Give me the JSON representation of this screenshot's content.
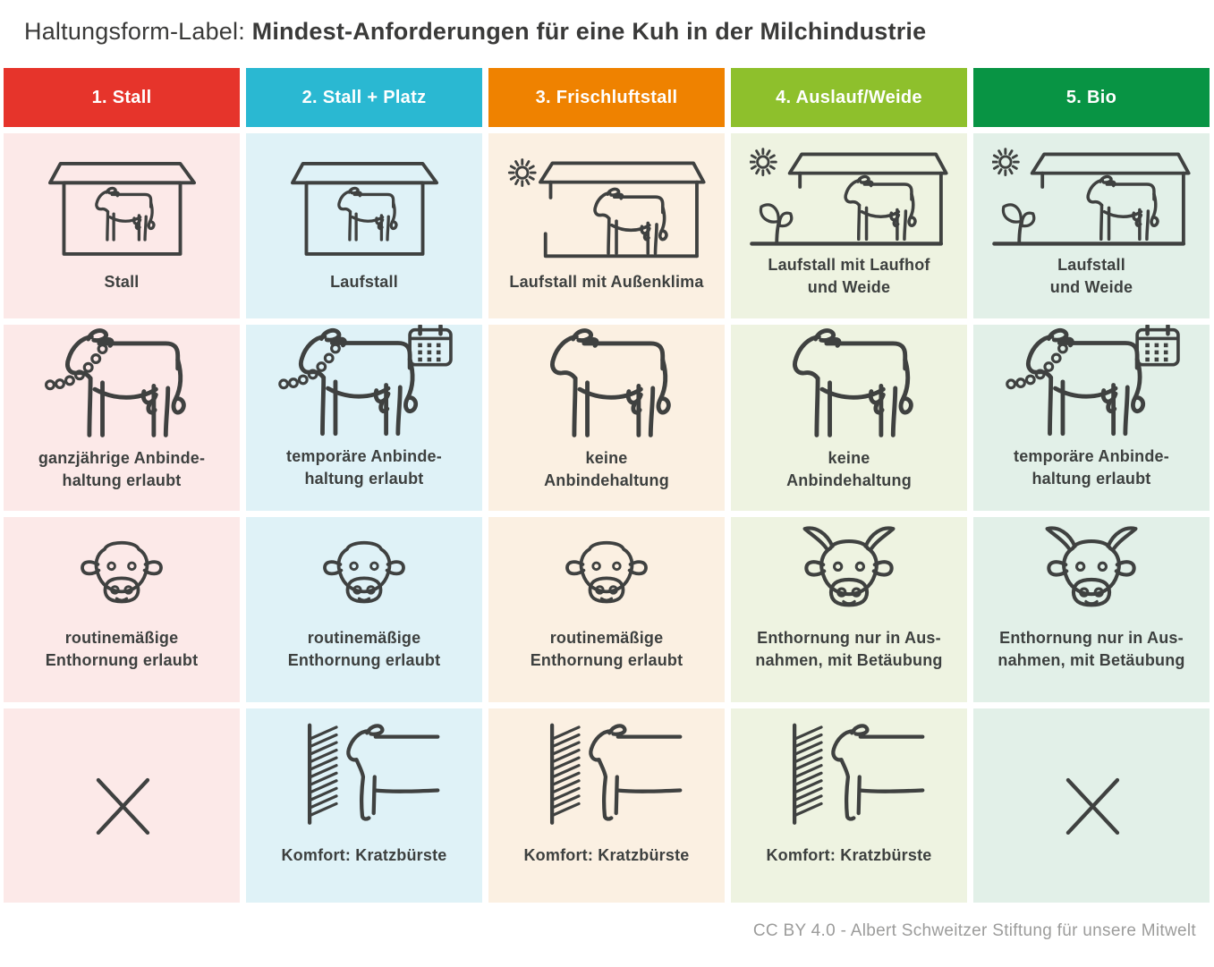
{
  "page_title": {
    "prefix": "Haltungsform-Label: ",
    "bold_rest": "Mindest-Anforderungen für eine Kuh in der Milchindustrie"
  },
  "credit": "CC BY 4.0 -  Albert Schweitzer Stiftung für unsere Mitwelt",
  "colors": {
    "line_art": "#3f4140",
    "caption_text": "#3d403f",
    "title_text": "#3a3a39",
    "credit_text": "#9c9c9b",
    "background": "#ffffff"
  },
  "columns": [
    {
      "id": "stall",
      "header": "1. Stall",
      "header_color": "#e6342b",
      "cell_color": "#fce9e8",
      "rows": [
        {
          "icon": "barn-closed-icon",
          "label": "Stall"
        },
        {
          "icon": "cow-chain-icon",
          "label": "ganzjährige Anbinde-\nhaltung erlaubt"
        },
        {
          "icon": "cow-head-icon",
          "label": "routinemäßige\nEnthornung erlaubt"
        },
        {
          "icon": "cross-icon",
          "label": ""
        }
      ]
    },
    {
      "id": "stall-platz",
      "header": "2. Stall + Platz",
      "header_color": "#2ab8d2",
      "cell_color": "#dff2f7",
      "rows": [
        {
          "icon": "barn-closed-icon",
          "label": "Laufstall"
        },
        {
          "icon": "cow-chain-calendar-icon",
          "label": "temporäre Anbinde-\nhaltung erlaubt"
        },
        {
          "icon": "cow-head-icon",
          "label": "routinemäßige\nEnthornung erlaubt"
        },
        {
          "icon": "brush-cow-icon",
          "label": "Komfort: Kratzbürste"
        }
      ]
    },
    {
      "id": "frischluftstall",
      "header": "3. Frischluftstall",
      "header_color": "#ef8200",
      "cell_color": "#fbf0e2",
      "rows": [
        {
          "icon": "barn-open-sun-icon",
          "label": "Laufstall mit Außenklima"
        },
        {
          "icon": "cow-icon",
          "label": "keine\nAnbindehaltung"
        },
        {
          "icon": "cow-head-icon",
          "label": "routinemäßige\nEnthornung erlaubt"
        },
        {
          "icon": "brush-cow-icon",
          "label": "Komfort: Kratzbürste"
        }
      ]
    },
    {
      "id": "auslauf-weide",
      "header": "4. Auslauf/Weide",
      "header_color": "#8ec02c",
      "cell_color": "#eef3e1",
      "rows": [
        {
          "icon": "barn-open-pasture-icon",
          "label": "Laufstall mit Laufhof\nund Weide"
        },
        {
          "icon": "cow-icon",
          "label": "keine\nAnbindehaltung"
        },
        {
          "icon": "cow-head-horns-icon",
          "label": "Enthornung nur in Aus-\nnahmen, mit Betäubung"
        },
        {
          "icon": "brush-cow-icon",
          "label": "Komfort: Kratzbürste"
        }
      ]
    },
    {
      "id": "bio",
      "header": "5. Bio",
      "header_color": "#089444",
      "cell_color": "#e2f0e8",
      "rows": [
        {
          "icon": "barn-open-pasture-icon",
          "label": "Laufstall\nund Weide"
        },
        {
          "icon": "cow-chain-calendar-icon",
          "label": "temporäre Anbinde-\nhaltung erlaubt"
        },
        {
          "icon": "cow-head-horns-icon",
          "label": "Enthornung nur in Aus-\nnahmen, mit Betäubung"
        },
        {
          "icon": "cross-icon",
          "label": ""
        }
      ]
    }
  ]
}
